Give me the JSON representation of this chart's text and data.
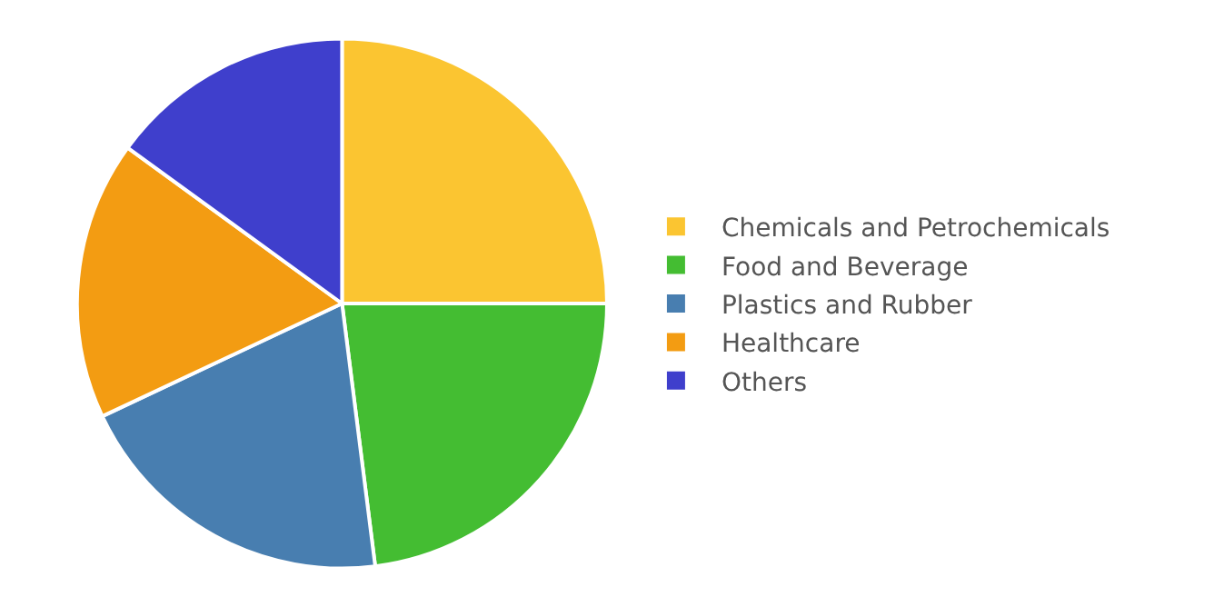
{
  "chart_data": {
    "type": "pie",
    "categories": [
      "Chemicals and Petrochemicals",
      "Food and Beverage",
      "Plastics and Rubber",
      "Healthcare",
      "Others"
    ],
    "values": [
      25,
      23,
      20,
      17,
      15
    ],
    "colors": [
      "#fbc531",
      "#44bd32",
      "#487eb0",
      "#f39c12",
      "#3f3fcc"
    ],
    "legend": "right"
  }
}
